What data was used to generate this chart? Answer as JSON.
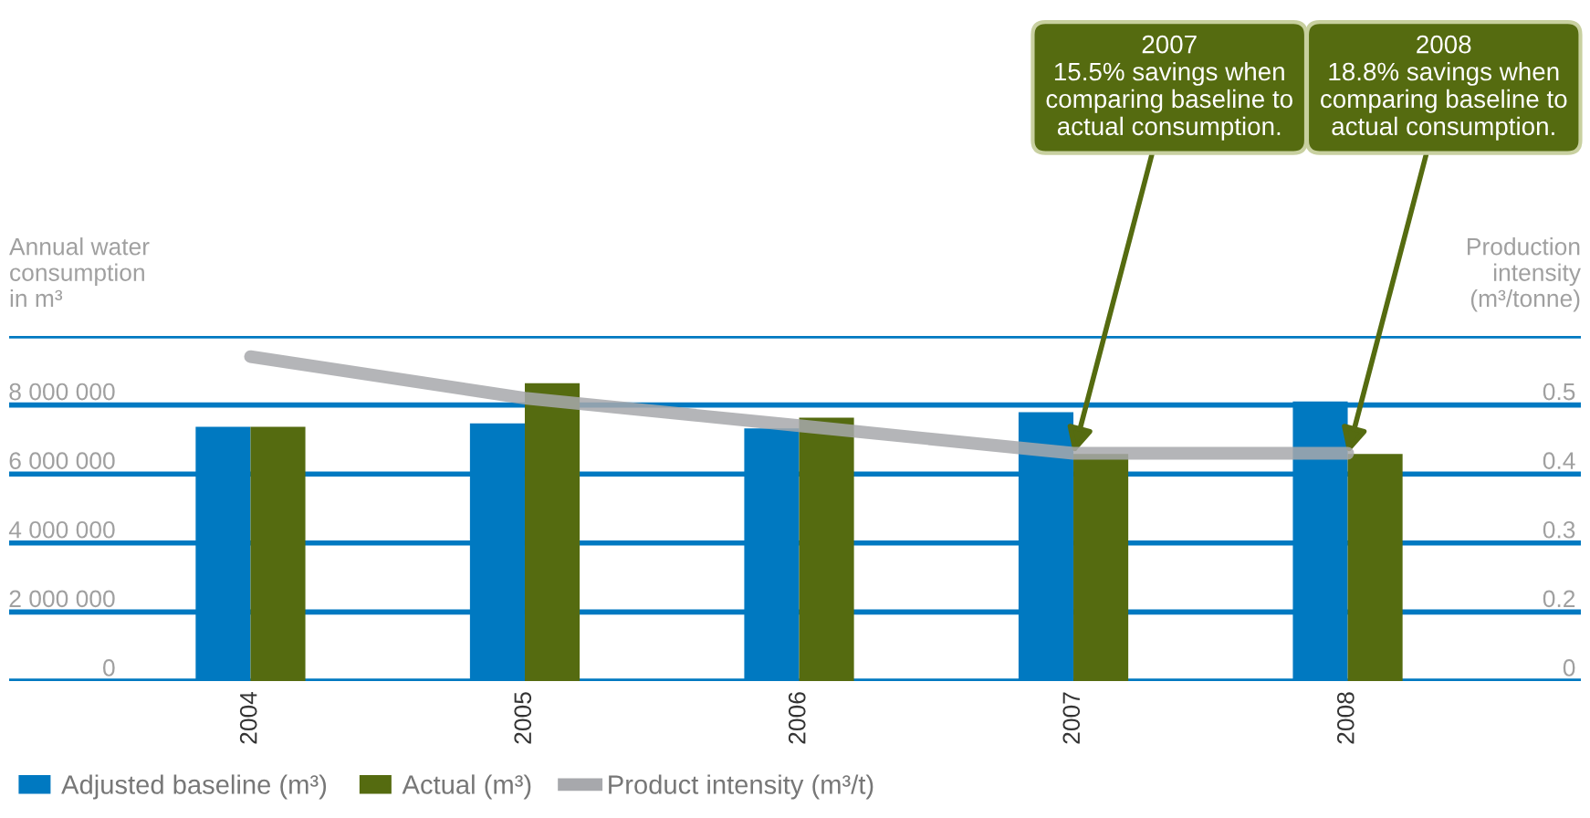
{
  "chart_data": {
    "type": "bar",
    "categories": [
      "2004",
      "2005",
      "2006",
      "2007",
      "2008"
    ],
    "series": [
      {
        "name": "Adjusted baseline (m³)",
        "color": "#0079c1",
        "values": [
          7370000,
          7470000,
          7320000,
          7790000,
          8100000
        ]
      },
      {
        "name": "Actual (m³)",
        "color": "#556b10",
        "values": [
          7370000,
          8630000,
          7630000,
          6580000,
          6580000
        ]
      },
      {
        "name": "Product intensity (m³/t)",
        "type": "line",
        "axis": "y2",
        "color": "#a7a8ac",
        "values": [
          0.57,
          0.51,
          0.47,
          0.43,
          0.43
        ]
      }
    ],
    "ylabel": "Annual water\nconsumption\nin m³",
    "y2label": "Production\nintensity\n(m³/tonne)",
    "ylim": [
      0,
      10000000
    ],
    "yticks": [
      {
        "value": 0,
        "label": "0"
      },
      {
        "value": 2000000,
        "label": "2 000 000"
      },
      {
        "value": 4000000,
        "label": "4 000 000"
      },
      {
        "value": 6000000,
        "label": "6 000 000"
      },
      {
        "value": 8000000,
        "label": "8 000 000"
      },
      {
        "value": 10000000,
        "label": null
      }
    ],
    "y2lim": [
      0.1,
      0.6
    ],
    "y2ticks": [
      {
        "value": 0.1,
        "label": "0"
      },
      0.2,
      0.3,
      0.4,
      0.5
    ],
    "grid": "y",
    "legend": "bottom",
    "annotations": [
      {
        "text": "2007\n15.5% savings when\ncomparing baseline to\nactual consumption.",
        "x": "2007",
        "y": 6580000
      },
      {
        "text": "2008\n18.8% savings when\ncomparing baseline to\nactual consumption.",
        "x": "2008",
        "y": 6580000
      }
    ]
  }
}
